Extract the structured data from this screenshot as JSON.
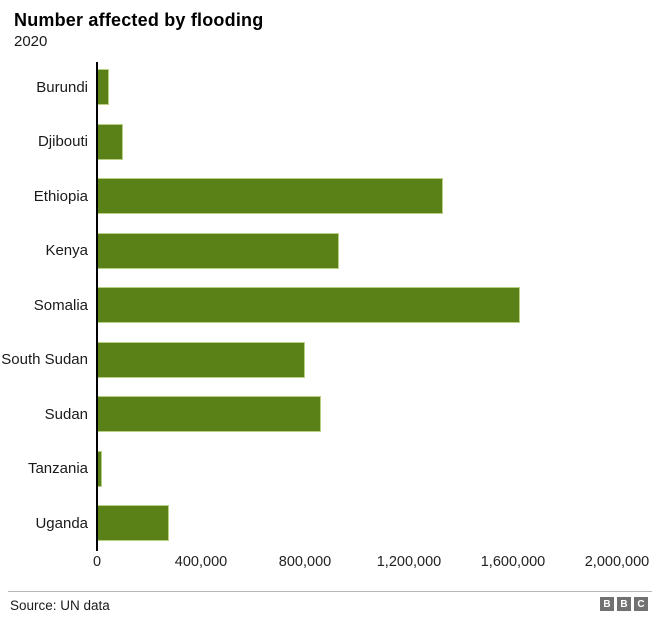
{
  "title": "Number affected by flooding",
  "subtitle": "2020",
  "source": "Source: UN data",
  "logo": {
    "name": "bbc-logo",
    "letters": [
      "B",
      "B",
      "C"
    ]
  },
  "colors": {
    "bar": "#5a8018",
    "bar_edge": "#b9cf86",
    "axis": "#000000",
    "divider": "#b7b7b7",
    "logo_bg": "#717171",
    "text": "#1a1a1a"
  },
  "chart_data": {
    "type": "bar",
    "orientation": "horizontal",
    "title": "Number affected by flooding",
    "subtitle": "2020",
    "xlabel": "",
    "ylabel": "",
    "categories": [
      "Burundi",
      "Djibouti",
      "Ethiopia",
      "Kenya",
      "Somalia",
      "South Sudan",
      "Sudan",
      "Tanzania",
      "Uganda"
    ],
    "values": [
      45000,
      100000,
      1330000,
      930000,
      1625000,
      800000,
      860000,
      20000,
      275000
    ],
    "xlim": [
      0,
      2000000
    ],
    "xticks": [
      0,
      400000,
      800000,
      1200000,
      1600000,
      2000000
    ],
    "xtick_labels": [
      "0",
      "400,000",
      "800,000",
      "1,200,000",
      "1,600,000",
      "2,000,000"
    ],
    "grid": false,
    "legend": false
  }
}
